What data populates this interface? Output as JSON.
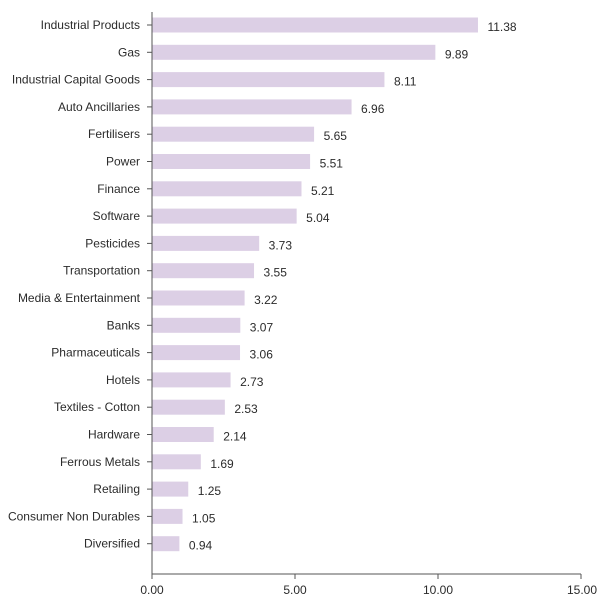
{
  "chart_data": {
    "type": "bar",
    "orientation": "horizontal",
    "categories": [
      "Industrial Products",
      "Gas",
      "Industrial Capital Goods",
      "Auto Ancillaries",
      "Fertilisers",
      "Power",
      "Finance",
      "Software",
      "Pesticides",
      "Transportation",
      "Media & Entertainment",
      "Banks",
      "Pharmaceuticals",
      "Hotels",
      "Textiles - Cotton",
      "Hardware",
      "Ferrous Metals",
      "Retailing",
      "Consumer Non Durables",
      "Diversified"
    ],
    "values": [
      11.38,
      9.89,
      8.11,
      6.96,
      5.65,
      5.51,
      5.21,
      5.04,
      3.73,
      3.55,
      3.22,
      3.07,
      3.06,
      2.73,
      2.53,
      2.14,
      1.69,
      1.25,
      1.05,
      0.94
    ],
    "value_labels": [
      "11.38",
      "9.89",
      "8.11",
      "6.96",
      "5.65",
      "5.51",
      "5.21",
      "5.04",
      "3.73",
      "3.55",
      "3.22",
      "3.07",
      "3.06",
      "2.73",
      "2.53",
      "2.14",
      "1.69",
      "1.25",
      "1.05",
      "0.94"
    ],
    "xlim": [
      0,
      15
    ],
    "x_ticks": [
      0,
      5,
      10,
      15
    ],
    "x_tick_labels": [
      "0.00",
      "5.00",
      "10.00",
      "15.00"
    ],
    "grid": false,
    "legend": "none",
    "bar_color": "#dccfe5"
  }
}
